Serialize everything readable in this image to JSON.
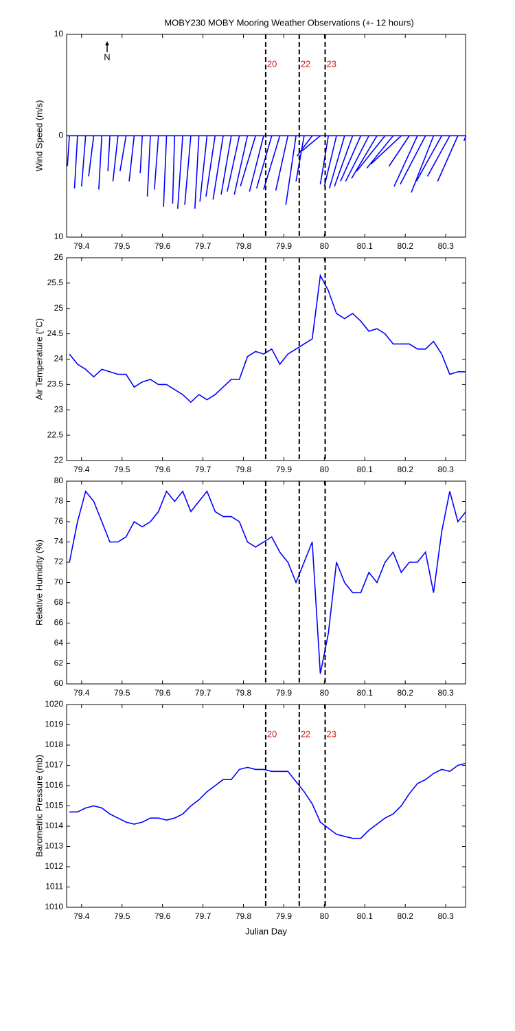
{
  "chart_data": [
    {
      "type": "stick",
      "title": "MOBY230 MOBY Mooring Weather Observations (+- 12 hours)",
      "ylabel": "Wind Speed (m/s)",
      "north_label": "N",
      "color": "#0000ff",
      "xlim": [
        79.363,
        80.349
      ],
      "xticks": [
        79.4,
        79.5,
        79.6,
        79.7,
        79.8,
        79.9,
        80,
        80.1,
        80.2,
        80.3
      ],
      "ylim": [
        -10,
        10
      ],
      "yticks": [
        {
          "value": -10,
          "label": "10"
        },
        0,
        10
      ],
      "x": [
        79.37,
        79.39,
        79.41,
        79.43,
        79.45,
        79.47,
        79.49,
        79.51,
        79.53,
        79.55,
        79.57,
        79.59,
        79.61,
        79.63,
        79.65,
        79.67,
        79.69,
        79.71,
        79.73,
        79.75,
        79.77,
        79.79,
        79.81,
        79.83,
        79.85,
        79.87,
        79.89,
        79.91,
        79.93,
        79.95,
        79.97,
        79.99,
        80.01,
        80.03,
        80.05,
        80.07,
        80.09,
        80.11,
        80.13,
        80.15,
        80.17,
        80.19,
        80.21,
        80.23,
        80.25,
        80.27,
        80.29,
        80.31,
        80.33,
        80.35
      ],
      "u": [
        -0.2,
        -0.3,
        -0.4,
        -0.5,
        -0.3,
        -0.2,
        -0.5,
        -0.6,
        -0.5,
        -0.2,
        -0.3,
        -0.4,
        -0.3,
        -0.2,
        -0.5,
        -0.6,
        -0.4,
        -0.7,
        -0.9,
        -1.0,
        -1.0,
        -1.2,
        -1.3,
        -1.5,
        -1.4,
        -1.5,
        -1.6,
        -1.2,
        -1.0,
        -0.8,
        -1.5,
        -1.8,
        -0.8,
        -1.2,
        -1.5,
        -1.8,
        -2,
        -2.3,
        -2.5,
        -2.8,
        -2.6,
        -3,
        -2,
        -2.3,
        -2.5,
        -2.2,
        -2.5,
        -2.2,
        -2,
        -0.2
      ],
      "v": [
        -3,
        -5.2,
        -5,
        -4,
        -5.3,
        -3.5,
        -4.5,
        -3.5,
        -4.5,
        -3.7,
        -6,
        -5.3,
        -7,
        -6.7,
        -7.2,
        -6.8,
        -7.2,
        -6.5,
        -6,
        -6.3,
        -5.8,
        -5.5,
        -5.8,
        -5,
        -5.5,
        -5.2,
        -5.3,
        -5.4,
        -6.8,
        -4.5,
        -2,
        -1.5,
        -4.8,
        -5,
        -5.2,
        -5,
        -4.5,
        -4.5,
        -4.2,
        -3.5,
        -3.2,
        -2.8,
        -3,
        -5,
        -4.8,
        -5.6,
        -4.5,
        -4,
        -4.5,
        -0.5
      ],
      "events": {
        "x": [
          79.855,
          79.938,
          80.002
        ],
        "labels": [
          "20",
          "22",
          "23"
        ],
        "color": "#cc2222"
      }
    },
    {
      "type": "line",
      "ylabel": "Air Temperature (°C)",
      "color": "#0000ff",
      "xlim": [
        79.363,
        80.349
      ],
      "xticks": [
        79.4,
        79.5,
        79.6,
        79.7,
        79.8,
        79.9,
        80,
        80.1,
        80.2,
        80.3
      ],
      "ylim": [
        22,
        26
      ],
      "yticks": [
        22,
        22.5,
        23,
        23.5,
        24,
        24.5,
        25,
        25.5,
        26
      ],
      "x": [
        79.37,
        79.39,
        79.41,
        79.43,
        79.45,
        79.47,
        79.49,
        79.51,
        79.53,
        79.55,
        79.57,
        79.59,
        79.61,
        79.63,
        79.65,
        79.67,
        79.69,
        79.71,
        79.73,
        79.75,
        79.77,
        79.79,
        79.81,
        79.83,
        79.85,
        79.87,
        79.89,
        79.91,
        79.93,
        79.95,
        79.97,
        79.99,
        80.01,
        80.03,
        80.05,
        80.07,
        80.09,
        80.11,
        80.13,
        80.15,
        80.17,
        80.19,
        80.21,
        80.23,
        80.25,
        80.27,
        80.29,
        80.31,
        80.33,
        80.35
      ],
      "values": [
        24.1,
        23.9,
        23.8,
        23.65,
        23.8,
        23.75,
        23.7,
        23.7,
        23.45,
        23.55,
        23.6,
        23.5,
        23.5,
        23.4,
        23.3,
        23.15,
        23.3,
        23.2,
        23.3,
        23.45,
        23.6,
        23.6,
        24.05,
        24.15,
        24.1,
        24.2,
        23.9,
        24.1,
        24.2,
        24.3,
        24.4,
        25.65,
        25.35,
        24.9,
        24.8,
        24.9,
        24.75,
        24.55,
        24.6,
        24.5,
        24.3,
        24.3,
        24.3,
        24.2,
        24.2,
        24.35,
        24.1,
        23.7,
        23.75,
        23.75
      ],
      "events": {
        "x": [
          79.855,
          79.938,
          80.002
        ]
      }
    },
    {
      "type": "line",
      "ylabel": "Relative Humidity (%)",
      "color": "#0000ff",
      "xlim": [
        79.363,
        80.349
      ],
      "xticks": [
        79.4,
        79.5,
        79.6,
        79.7,
        79.8,
        79.9,
        80,
        80.1,
        80.2,
        80.3
      ],
      "ylim": [
        60,
        80
      ],
      "yticks": [
        60,
        62,
        64,
        66,
        68,
        70,
        72,
        74,
        76,
        78,
        80
      ],
      "x": [
        79.37,
        79.39,
        79.41,
        79.43,
        79.45,
        79.47,
        79.49,
        79.51,
        79.53,
        79.55,
        79.57,
        79.59,
        79.61,
        79.63,
        79.65,
        79.67,
        79.69,
        79.71,
        79.73,
        79.75,
        79.77,
        79.79,
        79.81,
        79.83,
        79.85,
        79.87,
        79.89,
        79.91,
        79.93,
        79.95,
        79.97,
        79.99,
        80.01,
        80.03,
        80.05,
        80.07,
        80.09,
        80.11,
        80.13,
        80.15,
        80.17,
        80.19,
        80.21,
        80.23,
        80.25,
        80.27,
        80.29,
        80.31,
        80.33,
        80.35
      ],
      "values": [
        72,
        76,
        79,
        78,
        76,
        74,
        74,
        74.5,
        76,
        75.5,
        76,
        77,
        79,
        78,
        79,
        77,
        78,
        79,
        77,
        76.5,
        76.5,
        76,
        74,
        73.5,
        74,
        74.5,
        73,
        72,
        70,
        72,
        74,
        61,
        65,
        72,
        70,
        69,
        69,
        71,
        70,
        72,
        73,
        71,
        72,
        72,
        73,
        69,
        75,
        79,
        76,
        77
      ],
      "events": {
        "x": [
          79.855,
          79.938,
          80.002
        ]
      }
    },
    {
      "type": "line",
      "ylabel": "Barometric Pressure (mb)",
      "xlabel": "Julian Day",
      "color": "#0000ff",
      "xlim": [
        79.363,
        80.349
      ],
      "xticks": [
        79.4,
        79.5,
        79.6,
        79.7,
        79.8,
        79.9,
        80,
        80.1,
        80.2,
        80.3
      ],
      "ylim": [
        1010,
        1020
      ],
      "yticks": [
        1010,
        1011,
        1012,
        1013,
        1014,
        1015,
        1016,
        1017,
        1018,
        1019,
        1020
      ],
      "x": [
        79.37,
        79.39,
        79.41,
        79.43,
        79.45,
        79.47,
        79.49,
        79.51,
        79.53,
        79.55,
        79.57,
        79.59,
        79.61,
        79.63,
        79.65,
        79.67,
        79.69,
        79.71,
        79.73,
        79.75,
        79.77,
        79.79,
        79.81,
        79.83,
        79.85,
        79.87,
        79.89,
        79.91,
        79.93,
        79.95,
        79.97,
        79.99,
        80.01,
        80.03,
        80.05,
        80.07,
        80.09,
        80.11,
        80.13,
        80.15,
        80.17,
        80.19,
        80.21,
        80.23,
        80.25,
        80.27,
        80.29,
        80.31,
        80.33,
        80.35
      ],
      "values": [
        1014.7,
        1014.7,
        1014.9,
        1015,
        1014.9,
        1014.6,
        1014.4,
        1014.2,
        1014.1,
        1014.2,
        1014.4,
        1014.4,
        1014.3,
        1014.4,
        1014.6,
        1015,
        1015.3,
        1015.7,
        1016,
        1016.3,
        1016.3,
        1016.8,
        1016.9,
        1016.8,
        1016.8,
        1016.7,
        1016.7,
        1016.7,
        1016.2,
        1015.7,
        1015.1,
        1014.2,
        1013.9,
        1013.6,
        1013.5,
        1013.4,
        1013.4,
        1013.8,
        1014.1,
        1014.4,
        1014.6,
        1015,
        1015.6,
        1016.1,
        1016.3,
        1016.6,
        1016.8,
        1016.7,
        1017,
        1017.1
      ],
      "events": {
        "x": [
          79.855,
          79.938,
          80.002
        ],
        "labels": [
          "20",
          "22",
          "23"
        ],
        "color": "#cc2222"
      }
    }
  ]
}
